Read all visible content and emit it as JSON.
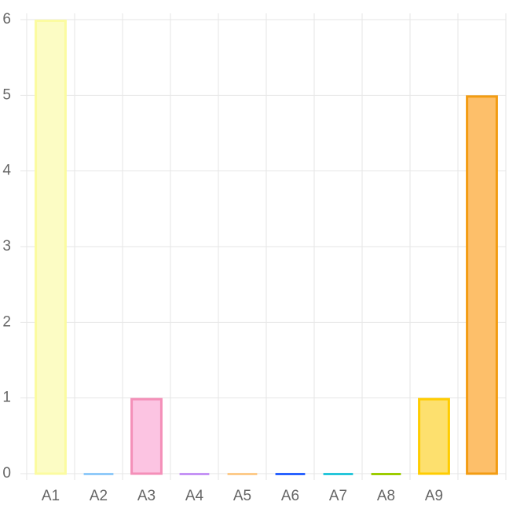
{
  "chart_data": {
    "type": "bar",
    "categories": [
      "A1",
      "A2",
      "A3",
      "A4",
      "A5",
      "A6",
      "A7",
      "A8",
      "A9",
      null
    ],
    "values": [
      6,
      0,
      1,
      0,
      0,
      0,
      0,
      0,
      1,
      5
    ],
    "colors": [
      "#fcfcc4",
      "#c5e2fb",
      "#fcc4e2",
      "#e2c4fb",
      "#fde4c4",
      "#9bb4fb",
      "#a9e8f0",
      "#d6eb9b",
      "#fde06e",
      "#fdbf6a"
    ],
    "border_colors": [
      "#fbfba0",
      "#90caf9",
      "#f48fb8",
      "#c593f5",
      "#fdcb8a",
      "#2962ff",
      "#26c6da",
      "#9ccc00",
      "#ffcc00",
      "#f39c12"
    ],
    "ylim": [
      0,
      6
    ],
    "yticks": [
      0,
      1,
      2,
      3,
      4,
      5,
      6
    ],
    "grid": true
  }
}
